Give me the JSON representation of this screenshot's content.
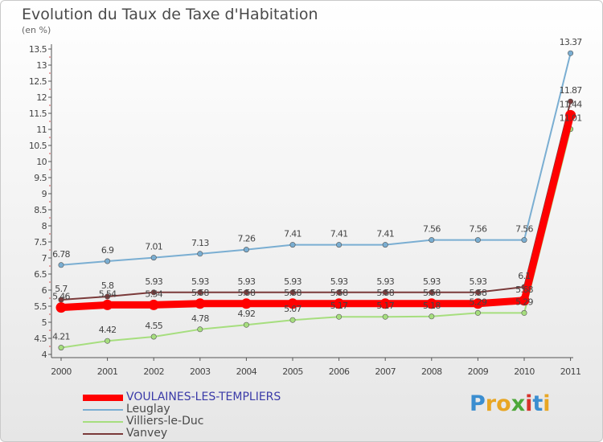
{
  "chart_data": {
    "type": "line",
    "title": "Evolution du Taux de Taxe d'Habitation",
    "subtitle": "(en %)",
    "x": [
      "2000",
      "2001",
      "2002",
      "2003",
      "2004",
      "2005",
      "2006",
      "2007",
      "2008",
      "2009",
      "2010",
      "2011"
    ],
    "ylim": [
      4,
      13.5
    ],
    "yticks": [
      "4",
      "4.5",
      "5",
      "5.5",
      "6",
      "6.5",
      "7",
      "7.5",
      "8",
      "8.5",
      "9",
      "9.5",
      "10",
      "10.5",
      "11",
      "11.5",
      "12",
      "12.5",
      "13",
      "13.5"
    ],
    "grid": false,
    "legend_position": "bottom-left",
    "series": [
      {
        "name": "VOULAINES-LES-TEMPLIERS",
        "color": "#ff0000",
        "values": [
          5.46,
          5.54,
          5.54,
          5.58,
          5.58,
          5.58,
          5.58,
          5.58,
          5.58,
          5.58,
          5.68,
          11.44
        ],
        "labels": [
          "5.46",
          "5.54",
          "5.54",
          "5.58",
          "5.58",
          "5.58",
          "5.58",
          "5.58",
          "5.58",
          "5.58",
          "5.68",
          "11.44"
        ]
      },
      {
        "name": "Leuglay",
        "color": "#7aaed2",
        "values": [
          6.78,
          6.9,
          7.01,
          7.13,
          7.26,
          7.41,
          7.41,
          7.41,
          7.56,
          7.56,
          7.56,
          13.37
        ],
        "labels": [
          "6.78",
          "6.9",
          "7.01",
          "7.13",
          "7.26",
          "7.41",
          "7.41",
          "7.41",
          "7.56",
          "7.56",
          "7.56",
          "13.37"
        ]
      },
      {
        "name": "Villiers-le-Duc",
        "color": "#a6de7e",
        "values": [
          4.21,
          4.42,
          4.55,
          4.78,
          4.92,
          5.07,
          5.17,
          5.17,
          5.18,
          5.29,
          5.29,
          11.01
        ],
        "labels": [
          "4.21",
          "4.42",
          "4.55",
          "4.78",
          "4.92",
          "5.07",
          "5.17",
          "5.17",
          "5.18",
          "5.29",
          "5.29",
          "11.01"
        ]
      },
      {
        "name": "Vanvey",
        "color": "#7a3a3a",
        "values": [
          5.7,
          5.8,
          5.93,
          5.93,
          5.93,
          5.93,
          5.93,
          5.93,
          5.93,
          5.93,
          6.1,
          11.87
        ],
        "labels": [
          "5.7",
          "5.8",
          "5.93",
          "5.93",
          "5.93",
          "5.93",
          "5.93",
          "5.93",
          "5.93",
          "5.93",
          "6.1",
          "11.87"
        ]
      }
    ]
  },
  "brand": {
    "letters": [
      {
        "ch": "P",
        "color": "#3b8ed0"
      },
      {
        "ch": "r",
        "color": "#e8a623"
      },
      {
        "ch": "o",
        "color": "#e8a623"
      },
      {
        "ch": "x",
        "color": "#4ea83a"
      },
      {
        "ch": "i",
        "color": "#d8322b"
      },
      {
        "ch": "t",
        "color": "#3b8ed0"
      },
      {
        "ch": "i",
        "color": "#e8a623"
      }
    ]
  }
}
